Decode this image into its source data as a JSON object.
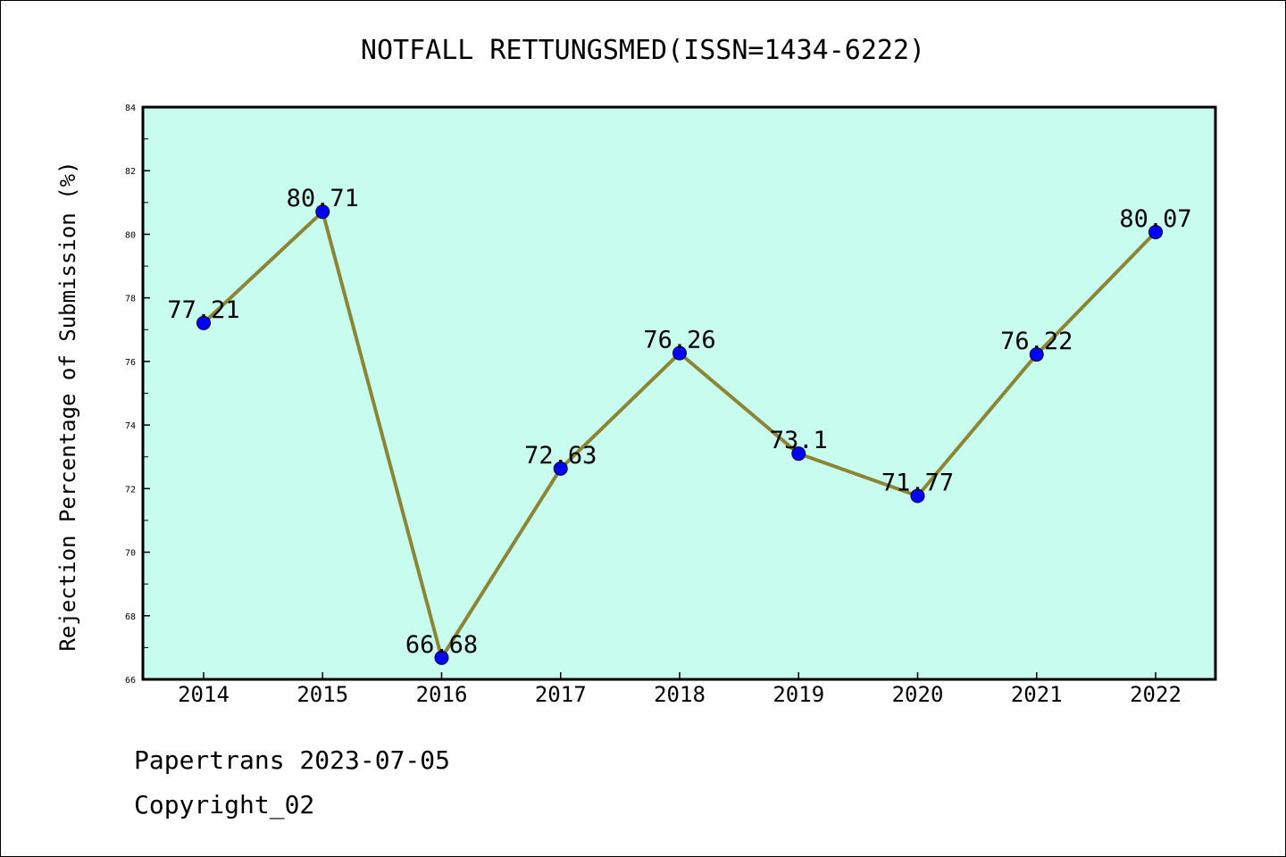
{
  "chart_data": {
    "type": "line",
    "title": "NOTFALL RETTUNGSMED(ISSN=1434-6222)",
    "ylabel": "Rejection Percentage of Submission (%)",
    "xlabel": "",
    "categories": [
      "2014",
      "2015",
      "2016",
      "2017",
      "2018",
      "2019",
      "2020",
      "2021",
      "2022"
    ],
    "values": [
      77.21,
      80.71,
      66.68,
      72.63,
      76.26,
      73.1,
      71.77,
      76.22,
      80.07
    ],
    "data_labels": [
      "77.21",
      "80.71",
      "66.68",
      "72.63",
      "76.26",
      "73.1",
      "71.77",
      "76.22",
      "80.07"
    ],
    "ylim": [
      66,
      84
    ],
    "yticks": [
      "66",
      "68",
      "70",
      "72",
      "74",
      "76",
      "78",
      "80",
      "82",
      "84"
    ],
    "grid": false,
    "legend": "none",
    "colors": {
      "plot_background": "#c8fcee",
      "line": "#8b8534",
      "marker": "#0000ff",
      "axes": "#000000"
    }
  },
  "footer": {
    "line1": "Papertrans 2023-07-05",
    "line2": "Copyright_02"
  }
}
